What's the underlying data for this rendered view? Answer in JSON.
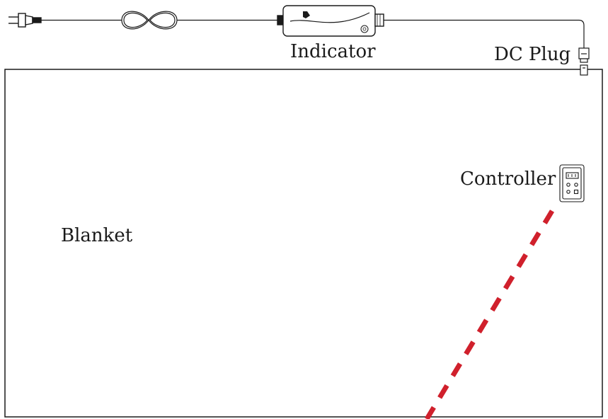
{
  "labels": {
    "indicator": "Indicator",
    "dc_plug": "DC Plug",
    "controller": "Controller",
    "blanket": "Blanket"
  },
  "colors": {
    "line": "#1a1a1a",
    "dashed_line": "#d0202c",
    "background": "#ffffff"
  },
  "icons": [
    "power-plug-icon",
    "coiled-cord-icon",
    "power-adapter-icon",
    "dc-connector-icon",
    "controller-icon"
  ]
}
